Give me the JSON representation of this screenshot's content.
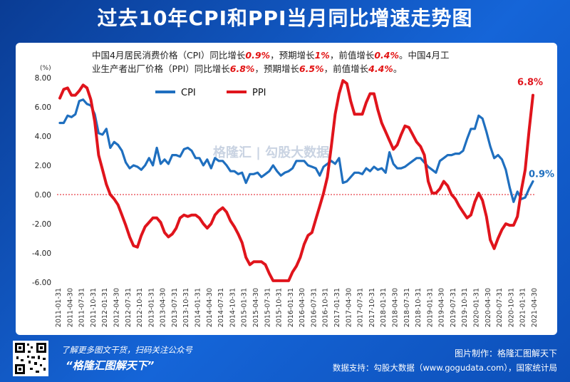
{
  "title": "过去10年CPI和PPI当月同比增速走势图",
  "note": {
    "line1_a": "中国4月居民消费价格（CPI）同比增长",
    "line1_b": "0.9%",
    "line1_c": "，预期增长",
    "line1_d": "1%",
    "line1_e": "，前值增长",
    "line1_f": "0.4%",
    "line1_g": "。中国4月工",
    "line2_a": "业生产者出厂价格（PPI）同比增长",
    "line2_b": "6.8%",
    "line2_c": "，预期增长",
    "line2_d": "6.5%",
    "line2_e": "，前值增长",
    "line2_f": "4.4%",
    "line2_g": "。"
  },
  "watermark": "格隆汇 | 勾股大数据",
  "footer": {
    "left_line1": "了解更多图文干货，扫码关注公众号",
    "left_line2": "“格隆汇图解天下”",
    "right_line1": "图片制作：格隆汇图解天下",
    "right_line2": "数据支持：勾股大数据（www.gogudata.com），国家统计局"
  },
  "colors": {
    "cpi": "#1f6fbf",
    "ppi": "#e0141c",
    "zero": "#e0141c"
  },
  "chart_data": {
    "type": "line",
    "title": "过去10年CPI和PPI当月同比增速走势图",
    "ylabel": "(%)",
    "ylim": [
      -6,
      8
    ],
    "yticks": [
      "8.00",
      "6.00",
      "4.00",
      "2.00",
      "0.00",
      "-2.00",
      "-4.00",
      "-6.00"
    ],
    "xticks": [
      "2011-01-31",
      "2011-04-30",
      "2011-07-31",
      "2011-10-31",
      "2012-01-31",
      "2012-04-30",
      "2012-07-31",
      "2012-10-31",
      "2013-01-31",
      "2013-04-30",
      "2013-07-31",
      "2013-10-31",
      "2014-01-31",
      "2014-04-30",
      "2014-07-31",
      "2014-10-31",
      "2015-01-31",
      "2015-04-30",
      "2015-07-31",
      "2015-10-31",
      "2016-01-31",
      "2016-04-30",
      "2016-07-31",
      "2016-10-31",
      "2017-01-31",
      "2017-04-30",
      "2017-07-31",
      "2017-10-31",
      "2018-01-31",
      "2018-04-30",
      "2018-07-31",
      "2018-10-31",
      "2019-01-31",
      "2019-04-30",
      "2019-07-31",
      "2019-10-31",
      "2020-01-31",
      "2020-04-30",
      "2020-07-31",
      "2020-10-31",
      "2021-01-31",
      "2021-04-30"
    ],
    "legend": [
      "CPI",
      "PPI"
    ],
    "legend_position": "top-left",
    "end_labels": {
      "CPI": "0.9%",
      "PPI": "6.8%"
    },
    "series": [
      {
        "name": "CPI",
        "values": [
          4.9,
          4.9,
          5.4,
          5.3,
          5.5,
          6.4,
          6.5,
          6.2,
          6.1,
          5.5,
          4.2,
          4.1,
          4.5,
          3.2,
          3.6,
          3.4,
          3.0,
          2.2,
          1.8,
          2.0,
          1.9,
          1.7,
          2.0,
          2.5,
          2.0,
          3.2,
          2.1,
          2.4,
          2.1,
          2.7,
          2.7,
          2.6,
          3.1,
          3.2,
          3.0,
          2.5,
          2.5,
          2.0,
          2.4,
          1.8,
          2.5,
          2.3,
          2.3,
          2.0,
          1.6,
          1.6,
          1.4,
          1.5,
          0.8,
          1.4,
          1.4,
          1.5,
          1.2,
          1.4,
          1.6,
          2.0,
          1.6,
          1.3,
          1.5,
          1.6,
          1.8,
          2.3,
          2.3,
          2.3,
          2.0,
          1.9,
          1.8,
          1.3,
          1.9,
          2.1,
          2.3,
          2.1,
          2.5,
          0.8,
          0.9,
          1.2,
          1.5,
          1.5,
          1.4,
          1.8,
          1.6,
          1.9,
          1.7,
          1.8,
          1.5,
          2.9,
          2.1,
          1.8,
          1.8,
          1.9,
          2.1,
          2.3,
          2.5,
          2.5,
          2.2,
          1.9,
          1.7,
          1.5,
          2.3,
          2.5,
          2.7,
          2.7,
          2.8,
          2.8,
          3.0,
          3.8,
          4.5,
          4.5,
          5.4,
          5.2,
          4.3,
          3.3,
          2.5,
          2.7,
          2.4,
          1.7,
          0.5,
          -0.5,
          0.2,
          -0.3,
          -0.2,
          0.4,
          0.9
        ]
      },
      {
        "name": "PPI",
        "values": [
          6.6,
          7.2,
          7.3,
          6.8,
          6.8,
          7.1,
          7.5,
          7.3,
          6.5,
          5.0,
          2.7,
          1.7,
          0.7,
          0.0,
          -0.3,
          -0.7,
          -1.4,
          -2.1,
          -2.9,
          -3.5,
          -3.6,
          -2.8,
          -2.2,
          -1.9,
          -1.6,
          -1.6,
          -1.9,
          -2.6,
          -2.9,
          -2.7,
          -2.3,
          -1.6,
          -1.4,
          -1.5,
          -1.4,
          -1.4,
          -1.6,
          -2.0,
          -2.3,
          -2.0,
          -1.4,
          -1.1,
          -0.9,
          -1.2,
          -1.8,
          -2.2,
          -2.7,
          -3.3,
          -4.3,
          -4.8,
          -4.6,
          -4.6,
          -4.6,
          -4.8,
          -5.4,
          -5.9,
          -5.9,
          -5.9,
          -5.9,
          -5.9,
          -5.3,
          -4.9,
          -4.3,
          -3.4,
          -2.8,
          -2.6,
          -1.7,
          -0.8,
          0.1,
          1.2,
          3.3,
          5.5,
          6.9,
          7.8,
          7.6,
          6.4,
          5.5,
          5.5,
          5.5,
          6.3,
          6.9,
          6.9,
          5.8,
          4.9,
          4.3,
          3.7,
          3.1,
          3.4,
          4.1,
          4.7,
          4.6,
          4.1,
          3.6,
          3.3,
          2.7,
          0.9,
          0.1,
          0.1,
          0.4,
          0.9,
          0.6,
          0.0,
          -0.3,
          -0.8,
          -1.2,
          -1.6,
          -1.4,
          -0.5,
          0.1,
          -0.4,
          -1.5,
          -3.1,
          -3.7,
          -3.0,
          -2.4,
          -2.0,
          -2.1,
          -2.1,
          -1.5,
          0.3,
          1.7,
          4.4,
          6.8
        ]
      }
    ]
  }
}
